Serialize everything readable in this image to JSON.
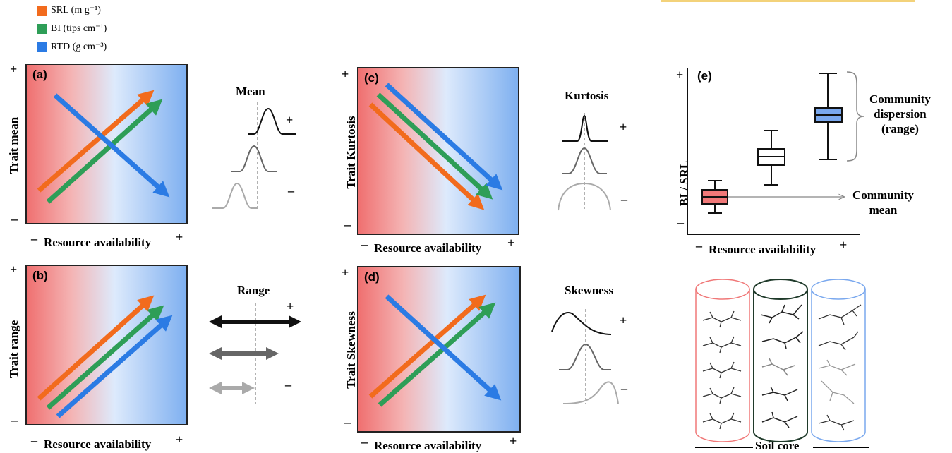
{
  "legend": [
    {
      "label": "SRL (m g⁻¹)",
      "color": "#f26b1d"
    },
    {
      "label": "BI (tips cm⁻¹)",
      "color": "#2e9e57"
    },
    {
      "label": "RTD (g cm⁻³)",
      "color": "#2b7be4"
    }
  ],
  "panels": {
    "a": {
      "label": "(a)",
      "ylabel": "Trait mean",
      "xlabel": "Resource availability",
      "side_title": "Mean"
    },
    "b": {
      "label": "(b)",
      "ylabel": "Trait range",
      "xlabel": "Resource availability",
      "side_title": "Range"
    },
    "c": {
      "label": "(c)",
      "ylabel": "Trait Kurtosis",
      "xlabel": "Resource availability",
      "side_title": "Kurtosis"
    },
    "d": {
      "label": "(d)",
      "ylabel": "Trait Skewness",
      "xlabel": "Resource availability",
      "side_title": "Skewness"
    },
    "e": {
      "label": "(e)",
      "ylabel": "BI / SRL",
      "xlabel": "Resource availability",
      "annotation_dispersion": [
        "Community",
        "dispersion",
        "(range)"
      ],
      "annotation_mean": [
        "Community",
        "mean"
      ]
    }
  },
  "signs": {
    "plus": "+",
    "minus": "–"
  },
  "soil_core_label": "Soil core",
  "colors": {
    "orange": "#f26b1d",
    "green": "#2e9e57",
    "blue": "#2b7be4",
    "core_red": "#f07878",
    "core_dark": "#1f3a2a",
    "core_blue": "#7aa8ee"
  }
}
